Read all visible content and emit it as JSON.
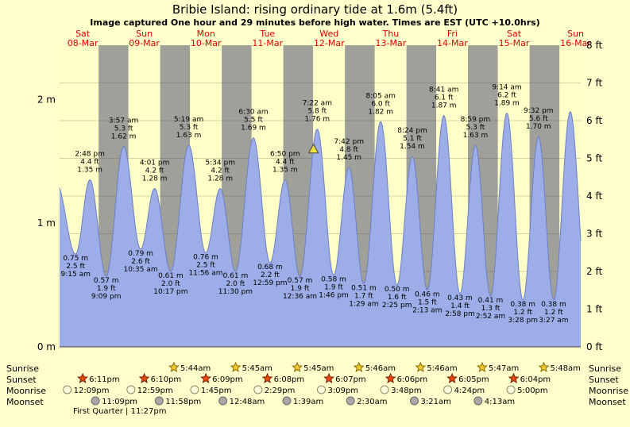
{
  "colors": {
    "background": "#ffffcc",
    "day_band": "#ffffc8",
    "night_band": "#a0a09b",
    "tide_fill": "#9cade8",
    "tide_stroke": "#6b7fc8",
    "day_label": "#e00000",
    "marker_fill": "#f0e040"
  },
  "chart_data": {
    "type": "area",
    "title": "Bribie Island: rising  ordinary tide at 1.6m (5.4ft)",
    "subtitle": "Image captured One hour and 29 minutes before high water. Times are EST (UTC +10.0hrs)",
    "x_axis": {
      "unit": "days",
      "hour_range": [
        3,
        206
      ],
      "days": [
        {
          "dow": "Sat",
          "date": "08-Mar"
        },
        {
          "dow": "Sun",
          "date": "09-Mar"
        },
        {
          "dow": "Mon",
          "date": "10-Mar"
        },
        {
          "dow": "Tue",
          "date": "11-Mar"
        },
        {
          "dow": "Wed",
          "date": "12-Mar"
        },
        {
          "dow": "Thu",
          "date": "13-Mar"
        },
        {
          "dow": "Fri",
          "date": "14-Mar"
        },
        {
          "dow": "Sat",
          "date": "15-Mar"
        },
        {
          "dow": "Sun",
          "date": "16-Mar"
        }
      ]
    },
    "y_axis": {
      "left_ticks": [
        "0 m",
        "1 m",
        "2 m"
      ],
      "right_ticks": [
        "0 ft",
        "1 ft",
        "2 ft",
        "3 ft",
        "4 ft",
        "5 ft",
        "6 ft",
        "7 ft",
        "8 ft"
      ],
      "ylim_ft": [
        0,
        8
      ],
      "grid": true
    },
    "tide_events": [
      {
        "hour": 9.25,
        "type": "low",
        "time": "9:15 am",
        "m": "0.75",
        "ft": "2.5"
      },
      {
        "hour": 14.8,
        "type": "high",
        "time": "2:48 pm",
        "m": "1.35",
        "ft": "4.4"
      },
      {
        "hour": 21.15,
        "type": "low",
        "time": "9:09 pm",
        "m": "0.57",
        "ft": "1.9"
      },
      {
        "hour": 27.95,
        "type": "high",
        "time": "3:57 am",
        "m": "1.62",
        "ft": "5.3"
      },
      {
        "hour": 34.58,
        "type": "low",
        "time": "10:35 am",
        "m": "0.79",
        "ft": "2.6"
      },
      {
        "hour": 40.02,
        "type": "high",
        "time": "4:01 pm",
        "m": "1.28",
        "ft": "4.2"
      },
      {
        "hour": 46.28,
        "type": "low",
        "time": "10:17 pm",
        "m": "0.61",
        "ft": "2.0"
      },
      {
        "hour": 53.32,
        "type": "high",
        "time": "5:19 am",
        "m": "1.63",
        "ft": "5.3"
      },
      {
        "hour": 59.93,
        "type": "low",
        "time": "11:56 am",
        "m": "0.76",
        "ft": "2.5"
      },
      {
        "hour": 65.57,
        "type": "high",
        "time": "5:34 pm",
        "m": "1.28",
        "ft": "4.2"
      },
      {
        "hour": 71.5,
        "type": "low",
        "time": "11:30 pm",
        "m": "0.61",
        "ft": "2.0"
      },
      {
        "hour": 78.5,
        "type": "high",
        "time": "6:30 am",
        "m": "1.69",
        "ft": "5.5"
      },
      {
        "hour": 84.98,
        "type": "low",
        "time": "12:59 pm",
        "m": "0.68",
        "ft": "2.2"
      },
      {
        "hour": 90.83,
        "type": "high",
        "time": "6:50 pm",
        "m": "1.35",
        "ft": "4.4"
      },
      {
        "hour": 96.6,
        "type": "low",
        "time": "12:36 am",
        "m": "0.57",
        "ft": "1.9"
      },
      {
        "hour": 103.37,
        "type": "high",
        "time": "7:22 am",
        "m": "1.76",
        "ft": "5.8"
      },
      {
        "hour": 109.77,
        "type": "low",
        "time": "1:46 pm",
        "m": "0.58",
        "ft": "1.9"
      },
      {
        "hour": 115.7,
        "type": "high",
        "time": "7:42 pm",
        "m": "1.45",
        "ft": "4.8"
      },
      {
        "hour": 121.48,
        "type": "low",
        "time": "1:29 am",
        "m": "0.51",
        "ft": "1.7"
      },
      {
        "hour": 128.08,
        "type": "high",
        "time": "8:05 am",
        "m": "1.82",
        "ft": "6.0"
      },
      {
        "hour": 134.42,
        "type": "low",
        "time": "2:25 pm",
        "m": "0.50",
        "ft": "1.6"
      },
      {
        "hour": 140.4,
        "type": "high",
        "time": "8:24 pm",
        "m": "1.54",
        "ft": "5.1"
      },
      {
        "hour": 146.22,
        "type": "low",
        "time": "2:13 am",
        "m": "0.46",
        "ft": "1.5"
      },
      {
        "hour": 152.68,
        "type": "high",
        "time": "8:41 am",
        "m": "1.87",
        "ft": "6.1"
      },
      {
        "hour": 158.97,
        "type": "low",
        "time": "2:58 pm",
        "m": "0.43",
        "ft": "1.4"
      },
      {
        "hour": 164.98,
        "type": "high",
        "time": "8:59 pm",
        "m": "1.63",
        "ft": "5.3"
      },
      {
        "hour": 170.87,
        "type": "low",
        "time": "2:52 am",
        "m": "0.41",
        "ft": "1.3"
      },
      {
        "hour": 177.23,
        "type": "high",
        "time": "9:14 am",
        "m": "1.89",
        "ft": "6.2"
      },
      {
        "hour": 183.47,
        "type": "low",
        "time": "3:28 pm",
        "m": "0.38",
        "ft": "1.2"
      },
      {
        "hour": 189.53,
        "type": "high",
        "time": "9:32 pm",
        "m": "1.70",
        "ft": "5.6"
      },
      {
        "hour": 195.45,
        "type": "low",
        "time": "3:27 am",
        "m": "0.38",
        "ft": "1.2"
      }
    ],
    "current_marker": {
      "hour": 101.9,
      "m": 1.6
    }
  },
  "astro": {
    "row_labels": [
      "Sunrise",
      "Sunset",
      "Moonrise",
      "Moonset"
    ],
    "sunrise": [
      {
        "hour": 53.73,
        "time": "5:44am"
      },
      {
        "hour": 77.75,
        "time": "5:45am"
      },
      {
        "hour": 101.75,
        "time": "5:45am"
      },
      {
        "hour": 125.77,
        "time": "5:46am"
      },
      {
        "hour": 149.77,
        "time": "5:46am"
      },
      {
        "hour": 173.78,
        "time": "5:47am"
      },
      {
        "hour": 197.8,
        "time": "5:48am"
      }
    ],
    "sunset": [
      {
        "hour": 18.18,
        "time": "6:11pm"
      },
      {
        "hour": 42.17,
        "time": "6:10pm"
      },
      {
        "hour": 66.15,
        "time": "6:09pm"
      },
      {
        "hour": 90.13,
        "time": "6:08pm"
      },
      {
        "hour": 114.12,
        "time": "6:07pm"
      },
      {
        "hour": 138.1,
        "time": "6:06pm"
      },
      {
        "hour": 162.08,
        "time": "6:05pm"
      },
      {
        "hour": 186.07,
        "time": "6:04pm"
      }
    ],
    "moonrise": [
      {
        "hour": 12.15,
        "time": "12:09pm"
      },
      {
        "hour": 36.98,
        "time": "12:59pm"
      },
      {
        "hour": 61.75,
        "time": "1:45pm"
      },
      {
        "hour": 86.48,
        "time": "2:29pm"
      },
      {
        "hour": 111.15,
        "time": "3:09pm"
      },
      {
        "hour": 135.8,
        "time": "3:48pm"
      },
      {
        "hour": 160.4,
        "time": "4:24pm"
      },
      {
        "hour": 185.0,
        "time": "5:00pm"
      }
    ],
    "moonset": [
      {
        "hour": 23.15,
        "time": "11:09pm"
      },
      {
        "hour": 47.97,
        "time": "11:58pm"
      },
      {
        "hour": 72.8,
        "time": "12:48am"
      },
      {
        "hour": 97.65,
        "time": "1:39am"
      },
      {
        "hour": 122.5,
        "time": "2:30am"
      },
      {
        "hour": 147.35,
        "time": "3:21am"
      },
      {
        "hour": 172.22,
        "time": "4:13am"
      }
    ],
    "moon_phase": "First Quarter | 11:27pm"
  }
}
